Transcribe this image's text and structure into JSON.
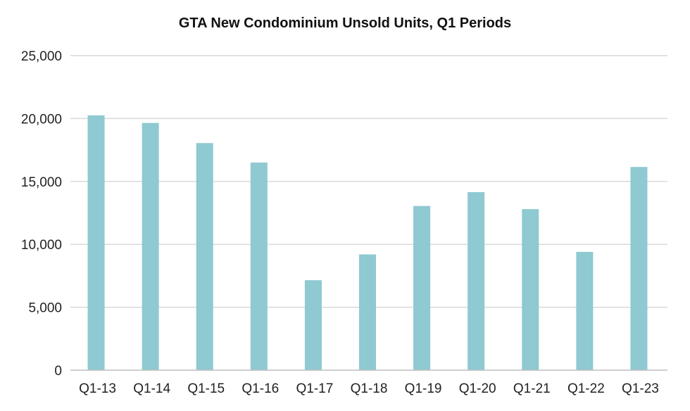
{
  "chart_data": {
    "type": "bar",
    "title": "GTA New Condominium Unsold Units, Q1 Periods",
    "categories": [
      "Q1-13",
      "Q1-14",
      "Q1-15",
      "Q1-16",
      "Q1-17",
      "Q1-18",
      "Q1-19",
      "Q1-20",
      "Q1-21",
      "Q1-22",
      "Q1-23"
    ],
    "series": [
      {
        "values": [
          20250,
          19650,
          18050,
          16500,
          7150,
          9200,
          13050,
          14150,
          12800,
          9400,
          16150
        ],
        "color": "#8fc9d1"
      }
    ],
    "xlabel": "",
    "ylabel": "",
    "ylim": [
      0,
      25000
    ],
    "yticks": [
      0,
      5000,
      10000,
      15000,
      20000,
      25000
    ],
    "ytick_labels": [
      "0",
      "5,000",
      "10,000",
      "15,000",
      "20,000",
      "25,000"
    ],
    "grid": true,
    "legend": "none",
    "colors": {
      "bar": "#8fc9d1",
      "grid": "#d9d9d9",
      "axis": "#bfbfbf"
    }
  }
}
